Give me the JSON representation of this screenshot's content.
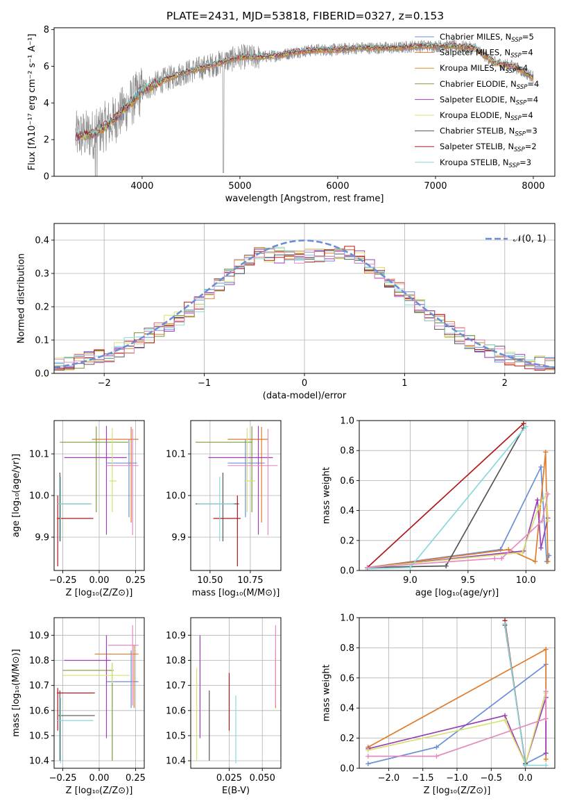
{
  "figure_title": "PLATE=2431, MJD=53818, FIBERID=0327, z=0.153",
  "colors": {
    "Chabrier MILES": "#6a8fd6",
    "Salpeter MILES": "#e07b2a",
    "Kroupa MILES": "#e08a2a",
    "Chabrier ELODIE": "#7a9a3a",
    "Salpeter ELODIE": "#9b3fb5",
    "Kroupa ELODIE": "#d8e070",
    "Chabrier STELIB": "#555555",
    "Salpeter STELIB": "#b01818",
    "Kroupa STELIB": "#88d8dc",
    "pink": "#e58ac0",
    "normal": "#6a8fd6"
  },
  "chart_data": [
    {
      "type": "line",
      "id": "spectrum",
      "xlabel": "wavelength [Angstrom, rest frame]",
      "ylabel": "Flux [fλ10⁻¹⁷ erg cm⁻² s⁻¹ A⁻¹]",
      "xlim": [
        3100,
        8220
      ],
      "ylim": [
        0,
        8.1
      ],
      "xticks": [
        "4000",
        "5000",
        "6000",
        "7000",
        "8000"
      ],
      "xtick_values": [
        4000,
        5000,
        6000,
        7000,
        8000
      ],
      "yticks": [
        "0",
        "2",
        "4",
        "6",
        "8"
      ],
      "ytick_values": [
        0,
        2,
        4,
        6,
        8
      ],
      "grid": false,
      "legend_placement": "right",
      "legend": [
        {
          "name": "Chabrier MILES",
          "nssp": "N",
          "sub": "SSP",
          "val": "=5",
          "color": "#6a8fd6"
        },
        {
          "name": "Salpeter MILES",
          "nssp": "N",
          "sub": "SSP",
          "val": "=4",
          "color": "#e07b2a"
        },
        {
          "name": "Kroupa MILES",
          "nssp": "N",
          "sub": "SSP",
          "val": "=4",
          "color": "#e08a2a"
        },
        {
          "name": "Chabrier ELODIE",
          "nssp": "N",
          "sub": "SSP",
          "val": "=4",
          "color": "#7a9a3a"
        },
        {
          "name": "Salpeter ELODIE",
          "nssp": "N",
          "sub": "SSP",
          "val": "=4",
          "color": "#9b3fb5"
        },
        {
          "name": "Kroupa ELODIE",
          "nssp": "N",
          "sub": "SSP",
          "val": "=4",
          "color": "#d8e070"
        },
        {
          "name": "Chabrier STELIB",
          "nssp": "N",
          "sub": "SSP",
          "val": "=3",
          "color": "#555555"
        },
        {
          "name": "Salpeter STELIB",
          "nssp": "N",
          "sub": "SSP",
          "val": "=2",
          "color": "#b01818"
        },
        {
          "name": "Kroupa STELIB",
          "nssp": "N",
          "sub": "SSP",
          "val": "=3",
          "color": "#88d8dc"
        }
      ],
      "continuum": {
        "x": [
          3320,
          3500,
          3700,
          3900,
          4000,
          4200,
          4400,
          4600,
          4800,
          5000,
          5200,
          5400,
          5600,
          5800,
          6000,
          6200,
          6400,
          6600,
          6800,
          7000,
          7200,
          7400,
          7600,
          7800,
          8000
        ],
        "y": [
          2.2,
          2.3,
          3.0,
          4.1,
          4.7,
          5.2,
          5.6,
          5.9,
          6.2,
          6.5,
          6.5,
          6.6,
          6.8,
          6.9,
          6.9,
          7.0,
          7.0,
          7.0,
          7.1,
          7.1,
          7.1,
          7.0,
          6.2,
          6.0,
          5.4
        ]
      }
    },
    {
      "type": "line",
      "id": "residuals",
      "xlabel": "(data-model)/error",
      "ylabel": "Normed distribution",
      "xlim": [
        -2.5,
        2.5
      ],
      "ylim": [
        0,
        0.45
      ],
      "xticks": [
        "−2",
        "−1",
        "0",
        "1",
        "2"
      ],
      "xtick_values": [
        -2,
        -1,
        0,
        1,
        2
      ],
      "yticks": [
        "0.0",
        "0.1",
        "0.2",
        "0.3",
        "0.4"
      ],
      "ytick_values": [
        0,
        0.1,
        0.2,
        0.3,
        0.4
      ],
      "grid": true,
      "legend_placement": "top-right",
      "legend_label": "𝒩(0, 1)",
      "normal_mean": 0,
      "normal_sigma": 1,
      "bin_width": 0.1,
      "hist_envelope": {
        "x": [
          -2.5,
          -2.0,
          -1.5,
          -1.0,
          -0.5,
          0.0,
          0.5,
          1.0,
          1.5,
          2.0,
          2.5
        ],
        "y": [
          0.02,
          0.05,
          0.12,
          0.22,
          0.36,
          0.35,
          0.36,
          0.24,
          0.12,
          0.05,
          0.02
        ]
      }
    },
    {
      "type": "scatter",
      "id": "age-vs-Z",
      "xlabel": "Z [log₁₀(Z/Z⊙)]",
      "ylabel": "age  [log₁₀(age/yr)]",
      "xlim": [
        -0.31,
        0.31
      ],
      "ylim": [
        9.82,
        10.18
      ],
      "xticks": [
        "−0.25",
        "0.00",
        "0.25"
      ],
      "xtick_values": [
        -0.25,
        0,
        0.25
      ],
      "yticks": [
        "9.9",
        "10.0",
        "10.1"
      ],
      "ytick_values": [
        9.9,
        10.0,
        10.1
      ],
      "grid": true,
      "points": [
        {
          "x": 0.205,
          "xlo": 0.055,
          "xhi": 0.26,
          "y": 10.078,
          "ylo": 9.948,
          "yhi": 10.135,
          "color": "#6a8fd6"
        },
        {
          "x": 0.22,
          "xlo": -0.05,
          "xhi": 0.27,
          "y": 10.135,
          "ylo": 9.935,
          "yhi": 10.165,
          "color": "#e07b2a"
        },
        {
          "x": -0.02,
          "xlo": -0.27,
          "xhi": 0.2,
          "y": 10.128,
          "ylo": 9.96,
          "yhi": 10.166,
          "color": "#7a9a3a"
        },
        {
          "x": 0.05,
          "xlo": -0.24,
          "xhi": 0.19,
          "y": 10.091,
          "ylo": 9.906,
          "yhi": 10.167,
          "color": "#9b3fb5"
        },
        {
          "x": 0.09,
          "xlo": 0.07,
          "xhi": 0.12,
          "y": 10.035,
          "ylo": 9.96,
          "yhi": 10.162,
          "color": "#d8e070"
        },
        {
          "x": -0.27,
          "xlo": -0.28,
          "xhi": -0.06,
          "y": 9.98,
          "ylo": 9.89,
          "yhi": 10.055,
          "color": "#555555"
        },
        {
          "x": -0.285,
          "xlo": -0.29,
          "xhi": -0.04,
          "y": 9.945,
          "ylo": 9.83,
          "yhi": 10.0,
          "color": "#b01818"
        },
        {
          "x": -0.265,
          "xlo": -0.285,
          "xhi": -0.05,
          "y": 9.98,
          "ylo": 9.89,
          "yhi": 10.045,
          "color": "#88d8dc"
        },
        {
          "x": 0.23,
          "xlo": 0.05,
          "xhi": 0.27,
          "y": 10.072,
          "ylo": 9.905,
          "yhi": 10.16,
          "color": "#e58ac0"
        }
      ]
    },
    {
      "type": "scatter",
      "id": "age-vs-mass",
      "xlabel": "mass [log₁₀(M/M⊙)]",
      "ylabel": "",
      "xlim": [
        10.38,
        10.94
      ],
      "ylim": [
        9.82,
        10.18
      ],
      "xticks": [
        "10.50",
        "10.75"
      ],
      "xtick_values": [
        10.5,
        10.75
      ],
      "yticks": [
        "9.9",
        "10.0",
        "10.1"
      ],
      "ytick_values": [
        9.9,
        10.0,
        10.1
      ],
      "grid": true,
      "points": [
        {
          "x": 10.72,
          "xlo": 10.61,
          "xhi": 10.84,
          "y": 10.078,
          "ylo": 9.948,
          "yhi": 10.135,
          "color": "#6a8fd6"
        },
        {
          "x": 10.82,
          "xlo": 10.61,
          "xhi": 10.86,
          "y": 10.135,
          "ylo": 9.935,
          "yhi": 10.165,
          "color": "#e07b2a"
        },
        {
          "x": 10.76,
          "xlo": 10.41,
          "xhi": 10.76,
          "y": 10.128,
          "ylo": 9.96,
          "yhi": 10.166,
          "color": "#7a9a3a"
        },
        {
          "x": 10.8,
          "xlo": 10.49,
          "xhi": 10.89,
          "y": 10.091,
          "ylo": 9.906,
          "yhi": 10.167,
          "color": "#9b3fb5"
        },
        {
          "x": 10.73,
          "xlo": 10.71,
          "xhi": 10.78,
          "y": 10.035,
          "ylo": 9.96,
          "yhi": 10.162,
          "color": "#d8e070"
        },
        {
          "x": 10.58,
          "xlo": 10.41,
          "xhi": 10.68,
          "y": 9.98,
          "ylo": 9.89,
          "yhi": 10.055,
          "color": "#555555"
        },
        {
          "x": 10.67,
          "xlo": 10.52,
          "xhi": 10.69,
          "y": 9.945,
          "ylo": 9.83,
          "yhi": 10.0,
          "color": "#b01818"
        },
        {
          "x": 10.56,
          "xlo": 10.42,
          "xhi": 10.65,
          "y": 9.98,
          "ylo": 9.89,
          "yhi": 10.045,
          "color": "#88d8dc"
        },
        {
          "x": 10.86,
          "xlo": 10.61,
          "xhi": 10.92,
          "y": 10.072,
          "ylo": 9.905,
          "yhi": 10.16,
          "color": "#e58ac0"
        }
      ]
    },
    {
      "type": "line",
      "id": "mass-weight-vs-age",
      "xlabel": "age  [log₁₀(age/yr)]",
      "ylabel": "mass weight",
      "xlim": [
        8.56,
        10.25
      ],
      "ylim": [
        0,
        1.0
      ],
      "xticks": [
        "9.0",
        "9.5",
        "10.0"
      ],
      "xtick_values": [
        9.0,
        9.5,
        10.0
      ],
      "yticks": [
        "0.0",
        "0.2",
        "0.4",
        "0.6",
        "0.8",
        "1.0"
      ],
      "ytick_values": [
        0,
        0.2,
        0.4,
        0.6,
        0.8,
        1.0
      ],
      "grid": true,
      "series": [
        {
          "color": "#6a8fd6",
          "x": [
            8.63,
            9.78,
            10.13,
            10.18,
            10.2
          ],
          "y": [
            0.02,
            0.14,
            0.69,
            0.06,
            0.1
          ]
        },
        {
          "color": "#e07b2a",
          "x": [
            8.63,
            9.85,
            10.08,
            10.17,
            10.19
          ],
          "y": [
            0.02,
            0.14,
            0.06,
            0.79,
            0.06
          ]
        },
        {
          "color": "#9b3fb5",
          "x": [
            8.63,
            9.98,
            10.1,
            10.13,
            10.19
          ],
          "y": [
            0.02,
            0.13,
            0.47,
            0.15,
            0.35
          ]
        },
        {
          "color": "#d8e070",
          "x": [
            8.63,
            9.97,
            10.11,
            10.18,
            10.19
          ],
          "y": [
            0.02,
            0.12,
            0.42,
            0.51,
            0.33
          ]
        },
        {
          "color": "#555555",
          "x": [
            8.63,
            9.31,
            9.98
          ],
          "y": [
            0.02,
            0.03,
            0.95
          ]
        },
        {
          "color": "#b01818",
          "x": [
            8.63,
            9.98
          ],
          "y": [
            0.02,
            0.98
          ]
        },
        {
          "color": "#88d8dc",
          "x": [
            8.63,
            9.0,
            10.0
          ],
          "y": [
            0.01,
            0.02,
            0.96
          ]
        },
        {
          "color": "#e58ac0",
          "x": [
            8.63,
            9.73,
            9.79,
            10.14,
            10.19
          ],
          "y": [
            0.02,
            0.08,
            0.08,
            0.33,
            0.51
          ]
        }
      ]
    },
    {
      "type": "scatter",
      "id": "mass-vs-Z",
      "xlabel": "Z [log₁₀(Z/Z⊙)]",
      "ylabel": "mass [log₁₀(M/M⊙)]",
      "xlim": [
        -0.31,
        0.31
      ],
      "ylim": [
        10.37,
        10.97
      ],
      "xticks": [
        "−0.25",
        "0.00",
        "0.25"
      ],
      "xtick_values": [
        -0.25,
        0,
        0.25
      ],
      "yticks": [
        "10.4",
        "10.5",
        "10.6",
        "10.7",
        "10.8",
        "10.9"
      ],
      "ytick_values": [
        10.4,
        10.5,
        10.6,
        10.7,
        10.8,
        10.9
      ],
      "grid": true,
      "points": [
        {
          "x": 0.22,
          "xlo": 0.05,
          "xhi": 0.27,
          "y": 10.715,
          "ylo": 10.61,
          "yhi": 10.84,
          "color": "#6a8fd6"
        },
        {
          "x": 0.24,
          "xlo": -0.03,
          "xhi": 0.27,
          "y": 10.825,
          "ylo": 10.61,
          "yhi": 10.86,
          "color": "#e07b2a"
        },
        {
          "x": 0.09,
          "xlo": -0.25,
          "xhi": 0.1,
          "y": 10.76,
          "ylo": 10.4,
          "yhi": 10.79,
          "color": "#7a9a3a"
        },
        {
          "x": 0.05,
          "xlo": -0.24,
          "xhi": 0.08,
          "y": 10.8,
          "ylo": 10.49,
          "yhi": 10.9,
          "color": "#9b3fb5"
        },
        {
          "x": 0.09,
          "xlo": -0.25,
          "xhi": 0.21,
          "y": 10.74,
          "ylo": 10.71,
          "yhi": 10.79,
          "color": "#d8e070"
        },
        {
          "x": -0.27,
          "xlo": -0.28,
          "xhi": -0.03,
          "y": 10.58,
          "ylo": 10.4,
          "yhi": 10.68,
          "color": "#555555"
        },
        {
          "x": -0.285,
          "xlo": -0.29,
          "xhi": -0.03,
          "y": 10.67,
          "ylo": 10.52,
          "yhi": 10.69,
          "color": "#b01818"
        },
        {
          "x": -0.265,
          "xlo": -0.285,
          "xhi": -0.04,
          "y": 10.56,
          "ylo": 10.39,
          "yhi": 10.65,
          "color": "#88d8dc"
        },
        {
          "x": 0.23,
          "xlo": 0.06,
          "xhi": 0.27,
          "y": 10.86,
          "ylo": 10.62,
          "yhi": 10.94,
          "color": "#e58ac0"
        }
      ]
    },
    {
      "type": "scatter",
      "id": "mass-vs-EBV",
      "xlabel": "E(B-V)",
      "ylabel": "",
      "xlim": [
        -0.004,
        0.064
      ],
      "ylim": [
        10.37,
        10.97
      ],
      "xticks": [
        "0.025",
        "0.050"
      ],
      "xtick_values": [
        0.025,
        0.05
      ],
      "yticks": [
        "10.4",
        "10.5",
        "10.6",
        "10.7",
        "10.8",
        "10.9"
      ],
      "ytick_values": [
        10.4,
        10.5,
        10.6,
        10.7,
        10.8,
        10.9
      ],
      "grid": true,
      "points": [
        {
          "x": 0.06,
          "y": 10.715,
          "ylo": 10.61,
          "yhi": 10.84,
          "color": "#e07b2a"
        },
        {
          "x": 0.06,
          "y": 10.86,
          "ylo": 10.62,
          "yhi": 10.94,
          "color": "#e58ac0"
        },
        {
          "x": 0.003,
          "y": 10.8,
          "ylo": 10.49,
          "yhi": 10.9,
          "color": "#9b3fb5"
        },
        {
          "x": 0.0005,
          "y": 10.74,
          "ylo": 10.4,
          "yhi": 10.77,
          "color": "#d8e070"
        },
        {
          "x": 0.01,
          "y": 10.58,
          "ylo": 10.4,
          "yhi": 10.68,
          "color": "#555555"
        },
        {
          "x": 0.025,
          "y": 10.67,
          "ylo": 10.52,
          "yhi": 10.75,
          "color": "#b01818"
        },
        {
          "x": 0.03,
          "y": 10.56,
          "ylo": 10.39,
          "yhi": 10.66,
          "color": "#88d8dc"
        }
      ]
    },
    {
      "type": "line",
      "id": "mass-weight-vs-Z",
      "xlabel": "Z [log₁₀(Z/Z⊙)]",
      "ylabel": "mass weight",
      "xlim": [
        -2.43,
        0.43
      ],
      "ylim": [
        0,
        1.0
      ],
      "xticks": [
        "−2.0",
        "−1.5",
        "−1.0",
        "−0.5",
        "0.0"
      ],
      "xtick_values": [
        -2.0,
        -1.5,
        -1.0,
        -0.5,
        0.0
      ],
      "yticks": [
        "0.0",
        "0.2",
        "0.4",
        "0.6",
        "0.8",
        "1.0"
      ],
      "ytick_values": [
        0,
        0.2,
        0.4,
        0.6,
        0.8,
        1.0
      ],
      "grid": true,
      "series": [
        {
          "color": "#6a8fd6",
          "x": [
            -2.3,
            -1.3,
            0.3,
            0.3,
            0.0
          ],
          "y": [
            0.03,
            0.14,
            0.69,
            0.1,
            0.03
          ]
        },
        {
          "color": "#e07b2a",
          "x": [
            -2.3,
            0.3,
            0.3
          ],
          "y": [
            0.14,
            0.79,
            0.06
          ]
        },
        {
          "color": "#9b3fb5",
          "x": [
            -2.3,
            -0.3,
            0.0,
            0.3,
            0.3
          ],
          "y": [
            0.13,
            0.35,
            0.03,
            0.47,
            0.1
          ]
        },
        {
          "color": "#d8e070",
          "x": [
            -2.3,
            -0.3,
            0.0,
            0.3,
            0.3
          ],
          "y": [
            0.12,
            0.32,
            0.03,
            0.51,
            0.5
          ]
        },
        {
          "color": "#555555",
          "x": [
            -0.3,
            0.0,
            0.0
          ],
          "y": [
            0.95,
            0.03,
            0.02
          ]
        },
        {
          "color": "#b01818",
          "x": [
            -0.3,
            0.0
          ],
          "y": [
            0.98,
            0.02
          ]
        },
        {
          "color": "#88d8dc",
          "x": [
            -0.3,
            0.0,
            0.3
          ],
          "y": [
            0.96,
            0.02,
            0.02
          ]
        },
        {
          "color": "#e58ac0",
          "x": [
            -2.3,
            -1.3,
            0.3,
            0.3
          ],
          "y": [
            0.08,
            0.08,
            0.33,
            0.51
          ]
        }
      ]
    }
  ]
}
